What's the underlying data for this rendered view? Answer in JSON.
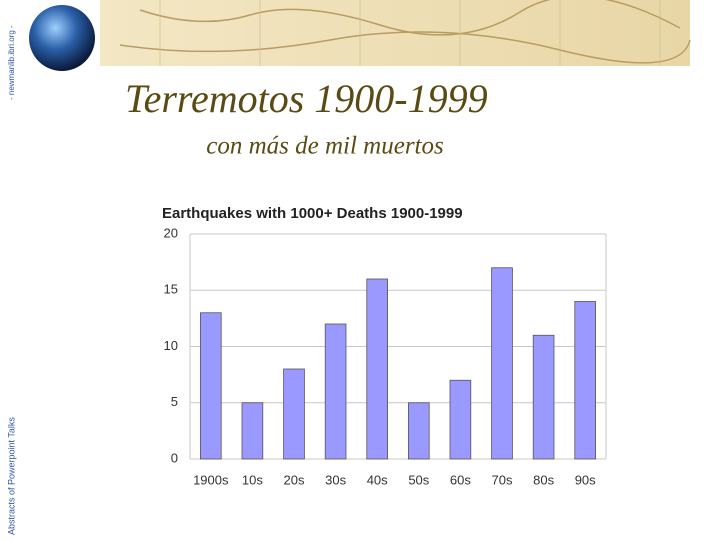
{
  "slide": {
    "site": "- newmanlib.ibri.org -",
    "side_note": "Abstracts of Powerpoint Talks",
    "title": "Terremotos 1900-1999",
    "subtitle": "con más de mil muertos"
  },
  "chart_data": {
    "type": "bar",
    "title": "Earthquakes with 1000+ Deaths 1900-1999",
    "categories": [
      "1900s",
      "10s",
      "20s",
      "30s",
      "40s",
      "50s",
      "60s",
      "70s",
      "80s",
      "90s"
    ],
    "values": [
      13,
      5,
      8,
      12,
      16,
      5,
      7,
      17,
      11,
      14
    ],
    "color": "#9999ff",
    "ylim": [
      0,
      20
    ],
    "yticks": [
      0,
      5,
      10,
      15,
      20
    ],
    "grid": true
  }
}
